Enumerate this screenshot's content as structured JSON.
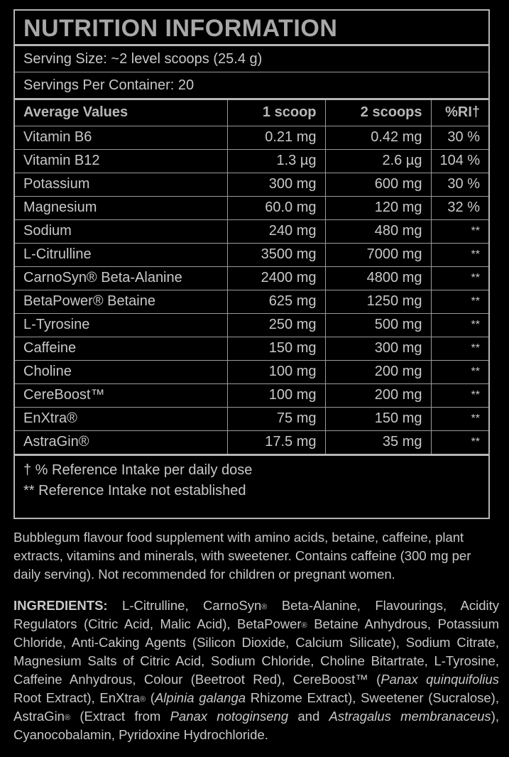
{
  "panel": {
    "title": "NUTRITION INFORMATION",
    "serving_size": "Serving Size: ~2 level scoops (25.4 g)",
    "servings_per_container": "Servings Per Container: 20"
  },
  "table": {
    "headers": [
      "Average Values",
      "1 scoop",
      "2 scoops",
      "%RI†"
    ],
    "rows": [
      {
        "name": "Vitamin B6",
        "one": "0.21 mg",
        "two": "0.42 mg",
        "ri": "30 %"
      },
      {
        "name": "Vitamin B12",
        "one": "1.3 µg",
        "two": "2.6 µg",
        "ri": "104 %"
      },
      {
        "name": "Potassium",
        "one": "300 mg",
        "two": "600 mg",
        "ri": "30 %"
      },
      {
        "name": "Magnesium",
        "one": "60.0 mg",
        "two": "120 mg",
        "ri": "32 %"
      },
      {
        "name": "Sodium",
        "one": "240 mg",
        "two": "480 mg",
        "ri": "**"
      },
      {
        "name": "L-Citrulline",
        "one": "3500 mg",
        "two": "7000 mg",
        "ri": "**"
      },
      {
        "name": "CarnoSyn® Beta-Alanine",
        "one": "2400 mg",
        "two": "4800 mg",
        "ri": "**"
      },
      {
        "name": "BetaPower® Betaine",
        "one": "625 mg",
        "two": "1250 mg",
        "ri": "**"
      },
      {
        "name": "L-Tyrosine",
        "one": "250 mg",
        "two": "500 mg",
        "ri": "**"
      },
      {
        "name": "Caffeine",
        "one": "150 mg",
        "two": "300 mg",
        "ri": "**"
      },
      {
        "name": "Choline",
        "one": "100 mg",
        "two": "200 mg",
        "ri": "**"
      },
      {
        "name": "CereBoost™",
        "one": "100 mg",
        "two": "200 mg",
        "ri": "**"
      },
      {
        "name": "EnXtra®",
        "one": "75 mg",
        "two": "150 mg",
        "ri": "**"
      },
      {
        "name": "AstraGin®",
        "one": "17.5 mg",
        "two": "35 mg",
        "ri": "**"
      }
    ]
  },
  "footnotes": {
    "dagger": "† % Reference Intake per daily dose",
    "stars": "** Reference Intake not established"
  },
  "description": "Bubblegum flavour food supplement with amino acids, betaine, caffeine, plant extracts, vitamins and minerals, with sweetener. Contains caffeine (300 mg per daily serving). Not recommended for children or pregnant women.",
  "ingredients": {
    "label": "INGREDIENTS:",
    "p1": " L-Citrulline, CarnoSyn",
    "reg": "®",
    "p2": " Beta-Alanine, Flavourings, Acidity Regulators (Citric Acid, Malic Acid), BetaPower",
    "p3": " Betaine Anhydrous, Potassium Chloride, Anti-Caking Agents (Silicon Dioxide, Calcium Silicate), Sodium Citrate, Magnesium Salts of Citric Acid, Sodium Chloride, Choline Bitartrate, L-Tyrosine, Caffeine Anhydrous, Colour (Beetroot Red), CereBoost™ (",
    "i1": "Panax quinquifolius",
    "p4": " Root Extract), EnXtra",
    "p5": " (",
    "i2": "Alpinia galanga",
    "p6": " Rhizome Extract), Sweetener (Sucralose), AstraGin",
    "p7": " (Extract from ",
    "i3": "Panax notoginseng",
    "p8": " and ",
    "i4": "Astragalus membranaceus",
    "p9": "), Cyanocobalamin, Pyridoxine Hydrochloride."
  },
  "colors": {
    "background": "#000000",
    "text": "#c8c8c8",
    "title": "#a8a8a8",
    "border": "#b5b5b5"
  }
}
